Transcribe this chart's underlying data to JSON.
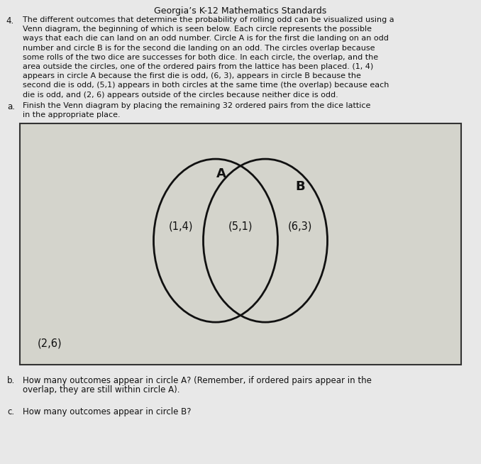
{
  "title": "Georgia’s K-12 Mathematics Standards",
  "question_number": "4.",
  "question_lines": [
    "The different outcomes that determine the probability of rolling odd can be visualized using a",
    "Venn diagram, the beginning of which is seen below. Each circle represents the possible",
    "ways that each die can land on an odd number. Circle A is for the first die landing on an odd",
    "number and circle B is for the second die landing on an odd. The circles overlap because",
    "some rolls of the two dice are successes for both dice. In each circle, the overlap, and the",
    "area outside the circles, one of the ordered pairs from the lattice has been placed. (1, 4)",
    "appears in circle A because the first die is odd, (6, 3), appears in circle B because the",
    "second die is odd, (5,1) appears in both circles at the same time (the overlap) because each",
    "die is odd, and (2, 6) appears outside of the circles because neither dice is odd."
  ],
  "sub_a_label": "a.",
  "sub_a_lines": [
    "Finish the Venn diagram by placing the remaining 32 ordered pairs from the dice lattice",
    "in the appropriate place."
  ],
  "sub_b_label": "b.",
  "sub_b_lines": [
    "How many outcomes appear in circle A? (Remember, if ordered pairs appear in the",
    "overlap, they are still within circle A)."
  ],
  "sub_c_label": "c.",
  "sub_c_text": "How many outcomes appear in circle B?",
  "circle_A_label": "A",
  "circle_B_label": "B",
  "label_only_A": "(1,4)",
  "label_overlap": "(5,1)",
  "label_only_B": "(6,3)",
  "label_outside": "(2,6)",
  "bg_color": "#e8e8e8",
  "box_bg_color": "#d8d8d0",
  "text_color": "#111111",
  "circle_color": "#111111",
  "box_edge_color": "#333333"
}
